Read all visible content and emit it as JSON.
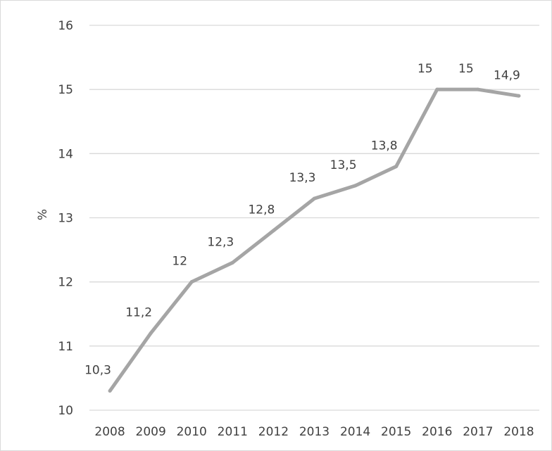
{
  "chart_data": {
    "type": "line",
    "title": "",
    "xlabel": "",
    "ylabel": "%",
    "ylim": [
      10,
      16
    ],
    "yticks": [
      10,
      11,
      12,
      13,
      14,
      15,
      16
    ],
    "ytick_labels": [
      "10",
      "11",
      "12",
      "13",
      "14",
      "15",
      "16"
    ],
    "grid": true,
    "categories": [
      "2008",
      "2009",
      "2010",
      "2011",
      "2012",
      "2013",
      "2014",
      "2015",
      "2016",
      "2017",
      "2018"
    ],
    "series": [
      {
        "values": [
          10.3,
          11.2,
          12,
          12.3,
          12.8,
          13.3,
          13.5,
          13.8,
          15,
          15,
          14.9
        ],
        "data_labels": [
          "10,3",
          "11,2",
          "12",
          "12,3",
          "12,8",
          "13,3",
          "13,5",
          "13,8",
          "15",
          "15",
          "14,9"
        ],
        "color": "#a5a5a5"
      }
    ],
    "colors": {
      "line": "#a5a5a5",
      "grid": "#d9d9d9",
      "text": "#404040"
    }
  }
}
